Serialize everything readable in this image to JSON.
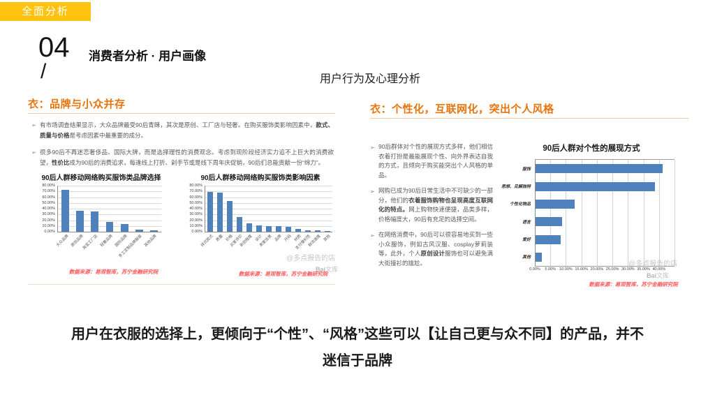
{
  "badge": {
    "label": "全面分析"
  },
  "header": {
    "number": "04",
    "slash": "/",
    "title": "消费者分析 · 用户画像",
    "subtitle": "用户行为及心理分析"
  },
  "left_section": {
    "title": "衣：品牌与小众并存",
    "bullets": [
      {
        "marker": "➢",
        "pre": "有市场调查结果显示，大众品牌最受90后青睐，其次是原创、工厂店与轻奢。在购买服饰类影响因素中，",
        "bold": "款式、质量与价格",
        "post": "是考虑因素中最重要的成分。"
      },
      {
        "marker": "➢",
        "pre": "很多90后不再迷恋奢侈品、国际大牌，而是选择理性的消费观念。考虑到现阶段经济实力追不上巨大的消费欲望，",
        "bold": "性价比",
        "post": "成为90后的消费追求，每逢线上打折、剁手节或是线下周年庆促销，90后们总能贡献一份“绵力”。"
      }
    ],
    "source": "数据来源：易观智库，苏宁金融研究院"
  },
  "right_section": {
    "title": "衣：个性化，互联网化，突出个人风格",
    "bullets": [
      {
        "marker": "➢",
        "pre": "90后群体对个性的展现方式多样，他们相信衣着打扮是最能展现个性、向外界表达自我的方式，且倾向于购买能突出个人风格的单品。",
        "bold": "",
        "post": ""
      },
      {
        "marker": "➢",
        "pre": "网购已成为90后日常生活中不可缺少的一部分，他们的",
        "bold": "衣着服饰购物也呈现高度互联网化的特点。",
        "post": "网上购物快速便捷，品类多样，价格幅度大，90后有充足的选择空间。"
      },
      {
        "marker": "➢",
        "pre": "在网络消费中，90后可以很容易地买到一些小众服饰，例如古风汉服、cosplay萝莉装等，此外，个人",
        "bold": "原创设计",
        "post": "服饰也可以避免满大街撞衫的尴尬。"
      }
    ],
    "source": "数据来源：易观智库，苏宁金融研究院"
  },
  "summary": {
    "line1": "用户在衣服的选择上，更倾向于“个性”、“风格”这些可以【让自己更与众不同】的产品，并不",
    "line2": "迷信于品牌"
  },
  "watermark": {
    "handle": "@多点报告的店",
    "logo_brand": "Bai",
    "logo_text": "文库"
  },
  "colors": {
    "accent_orange": "#e8740c",
    "badge_yellow": "#ffc20e",
    "bar_blue": "#4f81bd",
    "source_red": "#ff5a5a"
  },
  "chart_data": [
    {
      "type": "bar",
      "title": "90后人群移动网络购买服饰类品牌选择",
      "categories": [
        "大众品牌",
        "原创品牌",
        "淘宝工厂店",
        "轻奢品牌",
        "国际品牌",
        "手工定制品牌服装",
        "其他品牌"
      ],
      "values": [
        73,
        36,
        35,
        17,
        13,
        4,
        2
      ],
      "ylabel": "",
      "xlabel": "",
      "ylim": [
        0,
        80
      ],
      "ytick_step": 10,
      "unit": "%",
      "grid": true,
      "legend": "none"
    },
    {
      "type": "bar",
      "title": "90后人群移动网络购买服饰类影响因素",
      "categories": [
        "样式款式",
        "质量",
        "价格",
        "买家评价",
        "新旧程度",
        "设计",
        "卖家信誉",
        "品牌",
        "尺码",
        "材质",
        "支付便利性",
        "物流速度",
        "其他"
      ],
      "values": [
        69,
        68,
        53,
        25,
        15,
        11,
        10,
        10,
        9,
        5,
        3,
        2,
        1
      ],
      "ylabel": "",
      "xlabel": "",
      "ylim": [
        0,
        80
      ],
      "ytick_step": 10,
      "unit": "%",
      "grid": true,
      "legend": "none"
    },
    {
      "type": "hbar",
      "title": "90后人群对个性的展现方式",
      "categories": [
        "服饰",
        "思想、见解独特",
        "个性化物品",
        "语言",
        "爱好",
        "其他"
      ],
      "values": [
        41,
        38.5,
        12.5,
        8.5,
        8,
        2
      ],
      "ylabel": "",
      "xlabel": "",
      "xlim": [
        0,
        45
      ],
      "xtick_step": 5,
      "xtick_label_max": 40,
      "unit": "%",
      "grid": true,
      "legend": "none"
    }
  ]
}
